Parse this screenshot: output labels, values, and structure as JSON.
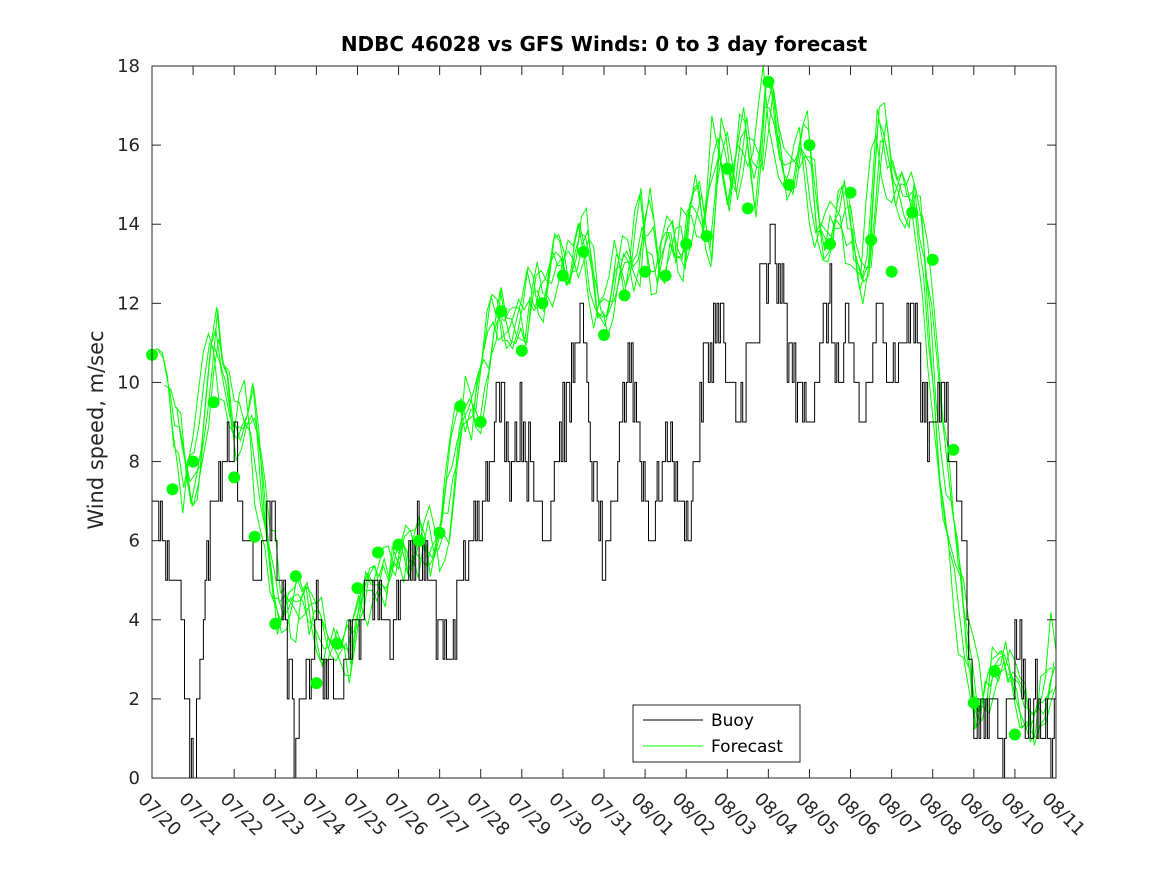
{
  "chart_data": {
    "type": "line",
    "title": "NDBC 46028 vs GFS Winds: 0 to 3 day forecast",
    "xlabel": "",
    "ylabel": "Wind speed, m/sec",
    "ylim": [
      0,
      18
    ],
    "yticks": [
      0,
      2,
      4,
      6,
      8,
      10,
      12,
      14,
      16,
      18
    ],
    "xticks": [
      "07/20",
      "07/21",
      "07/22",
      "07/23",
      "07/24",
      "07/25",
      "07/26",
      "07/27",
      "07/28",
      "07/29",
      "07/30",
      "07/31",
      "08/01",
      "08/02",
      "08/03",
      "08/04",
      "08/05",
      "08/06",
      "08/07",
      "08/08",
      "08/09",
      "08/10",
      "08/11"
    ],
    "xlim": [
      "07/20",
      "08/11"
    ],
    "legend": {
      "position": "bottom-center",
      "entries": [
        "Buoy",
        "Forecast"
      ]
    },
    "grid": false,
    "colors": {
      "buoy": "#000000",
      "forecast": "#00ff00"
    },
    "series": [
      {
        "name": "Buoy",
        "style": "step line (hourly)",
        "points": [
          [
            0.0,
            7
          ],
          [
            0.3,
            6
          ],
          [
            0.6,
            5
          ],
          [
            0.8,
            3
          ],
          [
            0.9,
            1
          ],
          [
            1.0,
            0
          ],
          [
            1.1,
            2
          ],
          [
            1.3,
            5
          ],
          [
            1.6,
            7
          ],
          [
            1.8,
            8
          ],
          [
            2.0,
            9
          ],
          [
            2.1,
            7
          ],
          [
            2.3,
            6
          ],
          [
            2.6,
            5
          ],
          [
            2.8,
            7
          ],
          [
            3.0,
            6
          ],
          [
            3.2,
            4
          ],
          [
            3.4,
            2
          ],
          [
            3.5,
            0
          ],
          [
            3.6,
            2
          ],
          [
            3.8,
            3
          ],
          [
            4.0,
            4
          ],
          [
            4.2,
            3
          ],
          [
            4.4,
            2
          ],
          [
            4.7,
            3
          ],
          [
            5.0,
            4
          ],
          [
            5.3,
            5
          ],
          [
            5.6,
            4
          ],
          [
            5.9,
            4
          ],
          [
            6.1,
            5
          ],
          [
            6.4,
            6
          ],
          [
            6.7,
            5
          ],
          [
            6.9,
            4
          ],
          [
            7.2,
            3
          ],
          [
            7.5,
            5
          ],
          [
            7.8,
            6
          ],
          [
            8.0,
            7
          ],
          [
            8.2,
            8
          ],
          [
            8.4,
            10
          ],
          [
            8.7,
            8
          ],
          [
            9.0,
            9
          ],
          [
            9.3,
            7
          ],
          [
            9.6,
            6
          ],
          [
            9.8,
            8
          ],
          [
            10.0,
            9
          ],
          [
            10.2,
            10
          ],
          [
            10.4,
            12
          ],
          [
            10.6,
            9
          ],
          [
            10.8,
            7
          ],
          [
            11.0,
            5
          ],
          [
            11.2,
            6
          ],
          [
            11.4,
            9
          ],
          [
            11.6,
            11
          ],
          [
            11.8,
            9
          ],
          [
            12.0,
            7
          ],
          [
            12.2,
            6
          ],
          [
            12.4,
            8
          ],
          [
            12.6,
            9
          ],
          [
            12.8,
            7
          ],
          [
            13.0,
            6
          ],
          [
            13.2,
            8
          ],
          [
            13.4,
            10
          ],
          [
            13.6,
            11
          ],
          [
            13.8,
            12
          ],
          [
            14.0,
            10
          ],
          [
            14.2,
            9
          ],
          [
            14.4,
            10
          ],
          [
            14.6,
            11
          ],
          [
            14.8,
            12
          ],
          [
            15.0,
            13
          ],
          [
            15.1,
            14
          ],
          [
            15.3,
            12
          ],
          [
            15.5,
            11
          ],
          [
            15.7,
            10
          ],
          [
            15.9,
            9
          ],
          [
            16.1,
            10
          ],
          [
            16.3,
            11
          ],
          [
            16.5,
            12
          ],
          [
            16.7,
            10
          ],
          [
            16.9,
            11
          ],
          [
            17.1,
            10
          ],
          [
            17.3,
            9
          ],
          [
            17.5,
            10
          ],
          [
            17.7,
            12
          ],
          [
            17.9,
            11
          ],
          [
            18.1,
            10
          ],
          [
            18.3,
            11
          ],
          [
            18.5,
            12
          ],
          [
            18.7,
            10
          ],
          [
            18.9,
            9
          ],
          [
            19.1,
            10
          ],
          [
            19.3,
            9
          ],
          [
            19.5,
            8
          ],
          [
            19.7,
            7
          ],
          [
            19.8,
            5
          ],
          [
            19.9,
            3
          ],
          [
            20.0,
            2
          ],
          [
            20.1,
            1
          ],
          [
            20.3,
            2
          ],
          [
            20.5,
            2
          ],
          [
            20.7,
            1
          ],
          [
            20.9,
            2
          ],
          [
            21.0,
            3
          ],
          [
            21.1,
            4
          ],
          [
            21.2,
            2
          ],
          [
            21.3,
            1
          ],
          [
            21.5,
            2
          ],
          [
            21.7,
            1
          ],
          [
            21.9,
            1
          ],
          [
            22.0,
            2
          ]
        ]
      },
      {
        "name": "Forecast",
        "style": "multiple forecast runs (lines) with analysis points (dots)",
        "points": [
          [
            0.0,
            10.5
          ],
          [
            0.3,
            10.8
          ],
          [
            0.6,
            9.0
          ],
          [
            0.9,
            7.2
          ],
          [
            1.2,
            8.5
          ],
          [
            1.5,
            11.5
          ],
          [
            1.8,
            10.0
          ],
          [
            2.1,
            8.5
          ],
          [
            2.4,
            9.8
          ],
          [
            2.7,
            7.0
          ],
          [
            3.0,
            4.5
          ],
          [
            3.3,
            4.0
          ],
          [
            3.6,
            4.8
          ],
          [
            3.9,
            4.2
          ],
          [
            4.2,
            3.2
          ],
          [
            4.5,
            3.5
          ],
          [
            4.8,
            3.0
          ],
          [
            5.1,
            4.5
          ],
          [
            5.4,
            5.2
          ],
          [
            5.7,
            5.0
          ],
          [
            6.0,
            5.8
          ],
          [
            6.3,
            5.6
          ],
          [
            6.6,
            6.2
          ],
          [
            6.9,
            5.5
          ],
          [
            7.2,
            6.8
          ],
          [
            7.5,
            9.5
          ],
          [
            7.8,
            9.0
          ],
          [
            8.1,
            10.5
          ],
          [
            8.4,
            12.0
          ],
          [
            8.7,
            11.0
          ],
          [
            9.0,
            11.5
          ],
          [
            9.3,
            12.5
          ],
          [
            9.6,
            12.0
          ],
          [
            9.9,
            13.5
          ],
          [
            10.2,
            12.5
          ],
          [
            10.5,
            14.2
          ],
          [
            10.8,
            12.0
          ],
          [
            11.1,
            11.5
          ],
          [
            11.4,
            13.5
          ],
          [
            11.7,
            12.5
          ],
          [
            12.0,
            14.5
          ],
          [
            12.3,
            12.5
          ],
          [
            12.6,
            14.0
          ],
          [
            12.9,
            13.0
          ],
          [
            13.2,
            15.0
          ],
          [
            13.5,
            13.5
          ],
          [
            13.8,
            16.5
          ],
          [
            14.1,
            14.5
          ],
          [
            14.4,
            16.8
          ],
          [
            14.7,
            14.5
          ],
          [
            15.0,
            17.8
          ],
          [
            15.3,
            15.5
          ],
          [
            15.6,
            15.0
          ],
          [
            15.9,
            16.5
          ],
          [
            16.2,
            13.5
          ],
          [
            16.5,
            13.5
          ],
          [
            16.8,
            15.0
          ],
          [
            17.1,
            13.0
          ],
          [
            17.4,
            12.5
          ],
          [
            17.7,
            17.0
          ],
          [
            18.0,
            15.0
          ],
          [
            18.3,
            14.5
          ],
          [
            18.6,
            14.8
          ],
          [
            18.9,
            12.0
          ],
          [
            19.2,
            8.0
          ],
          [
            19.5,
            6.0
          ],
          [
            19.8,
            3.5
          ],
          [
            20.1,
            1.5
          ],
          [
            20.4,
            2.5
          ],
          [
            20.7,
            3.0
          ],
          [
            21.0,
            2.5
          ],
          [
            21.3,
            1.2
          ],
          [
            21.6,
            1.5
          ],
          [
            21.9,
            2.5
          ],
          [
            22.0,
            3.5
          ]
        ],
        "dots": [
          [
            0.0,
            10.7
          ],
          [
            0.5,
            7.3
          ],
          [
            1.0,
            8.0
          ],
          [
            1.5,
            9.5
          ],
          [
            2.0,
            7.6
          ],
          [
            2.5,
            6.1
          ],
          [
            3.0,
            3.9
          ],
          [
            3.5,
            5.1
          ],
          [
            4.0,
            2.4
          ],
          [
            4.5,
            3.4
          ],
          [
            5.0,
            4.8
          ],
          [
            5.5,
            5.7
          ],
          [
            6.0,
            5.9
          ],
          [
            6.5,
            6.0
          ],
          [
            7.0,
            6.2
          ],
          [
            7.5,
            9.4
          ],
          [
            8.0,
            9.0
          ],
          [
            8.5,
            11.8
          ],
          [
            9.0,
            10.8
          ],
          [
            9.5,
            12.0
          ],
          [
            10.0,
            12.7
          ],
          [
            10.5,
            13.3
          ],
          [
            11.0,
            11.2
          ],
          [
            11.5,
            12.2
          ],
          [
            12.0,
            12.8
          ],
          [
            12.5,
            12.7
          ],
          [
            13.0,
            13.5
          ],
          [
            13.5,
            13.7
          ],
          [
            14.0,
            15.4
          ],
          [
            14.5,
            14.4
          ],
          [
            15.0,
            17.6
          ],
          [
            15.5,
            15.0
          ],
          [
            16.0,
            16.0
          ],
          [
            16.5,
            13.5
          ],
          [
            17.0,
            14.8
          ],
          [
            17.5,
            13.6
          ],
          [
            18.0,
            12.8
          ],
          [
            18.5,
            14.3
          ],
          [
            19.0,
            13.1
          ],
          [
            19.5,
            8.3
          ],
          [
            20.0,
            1.9
          ],
          [
            20.5,
            2.7
          ],
          [
            21.0,
            1.1
          ]
        ]
      }
    ]
  }
}
